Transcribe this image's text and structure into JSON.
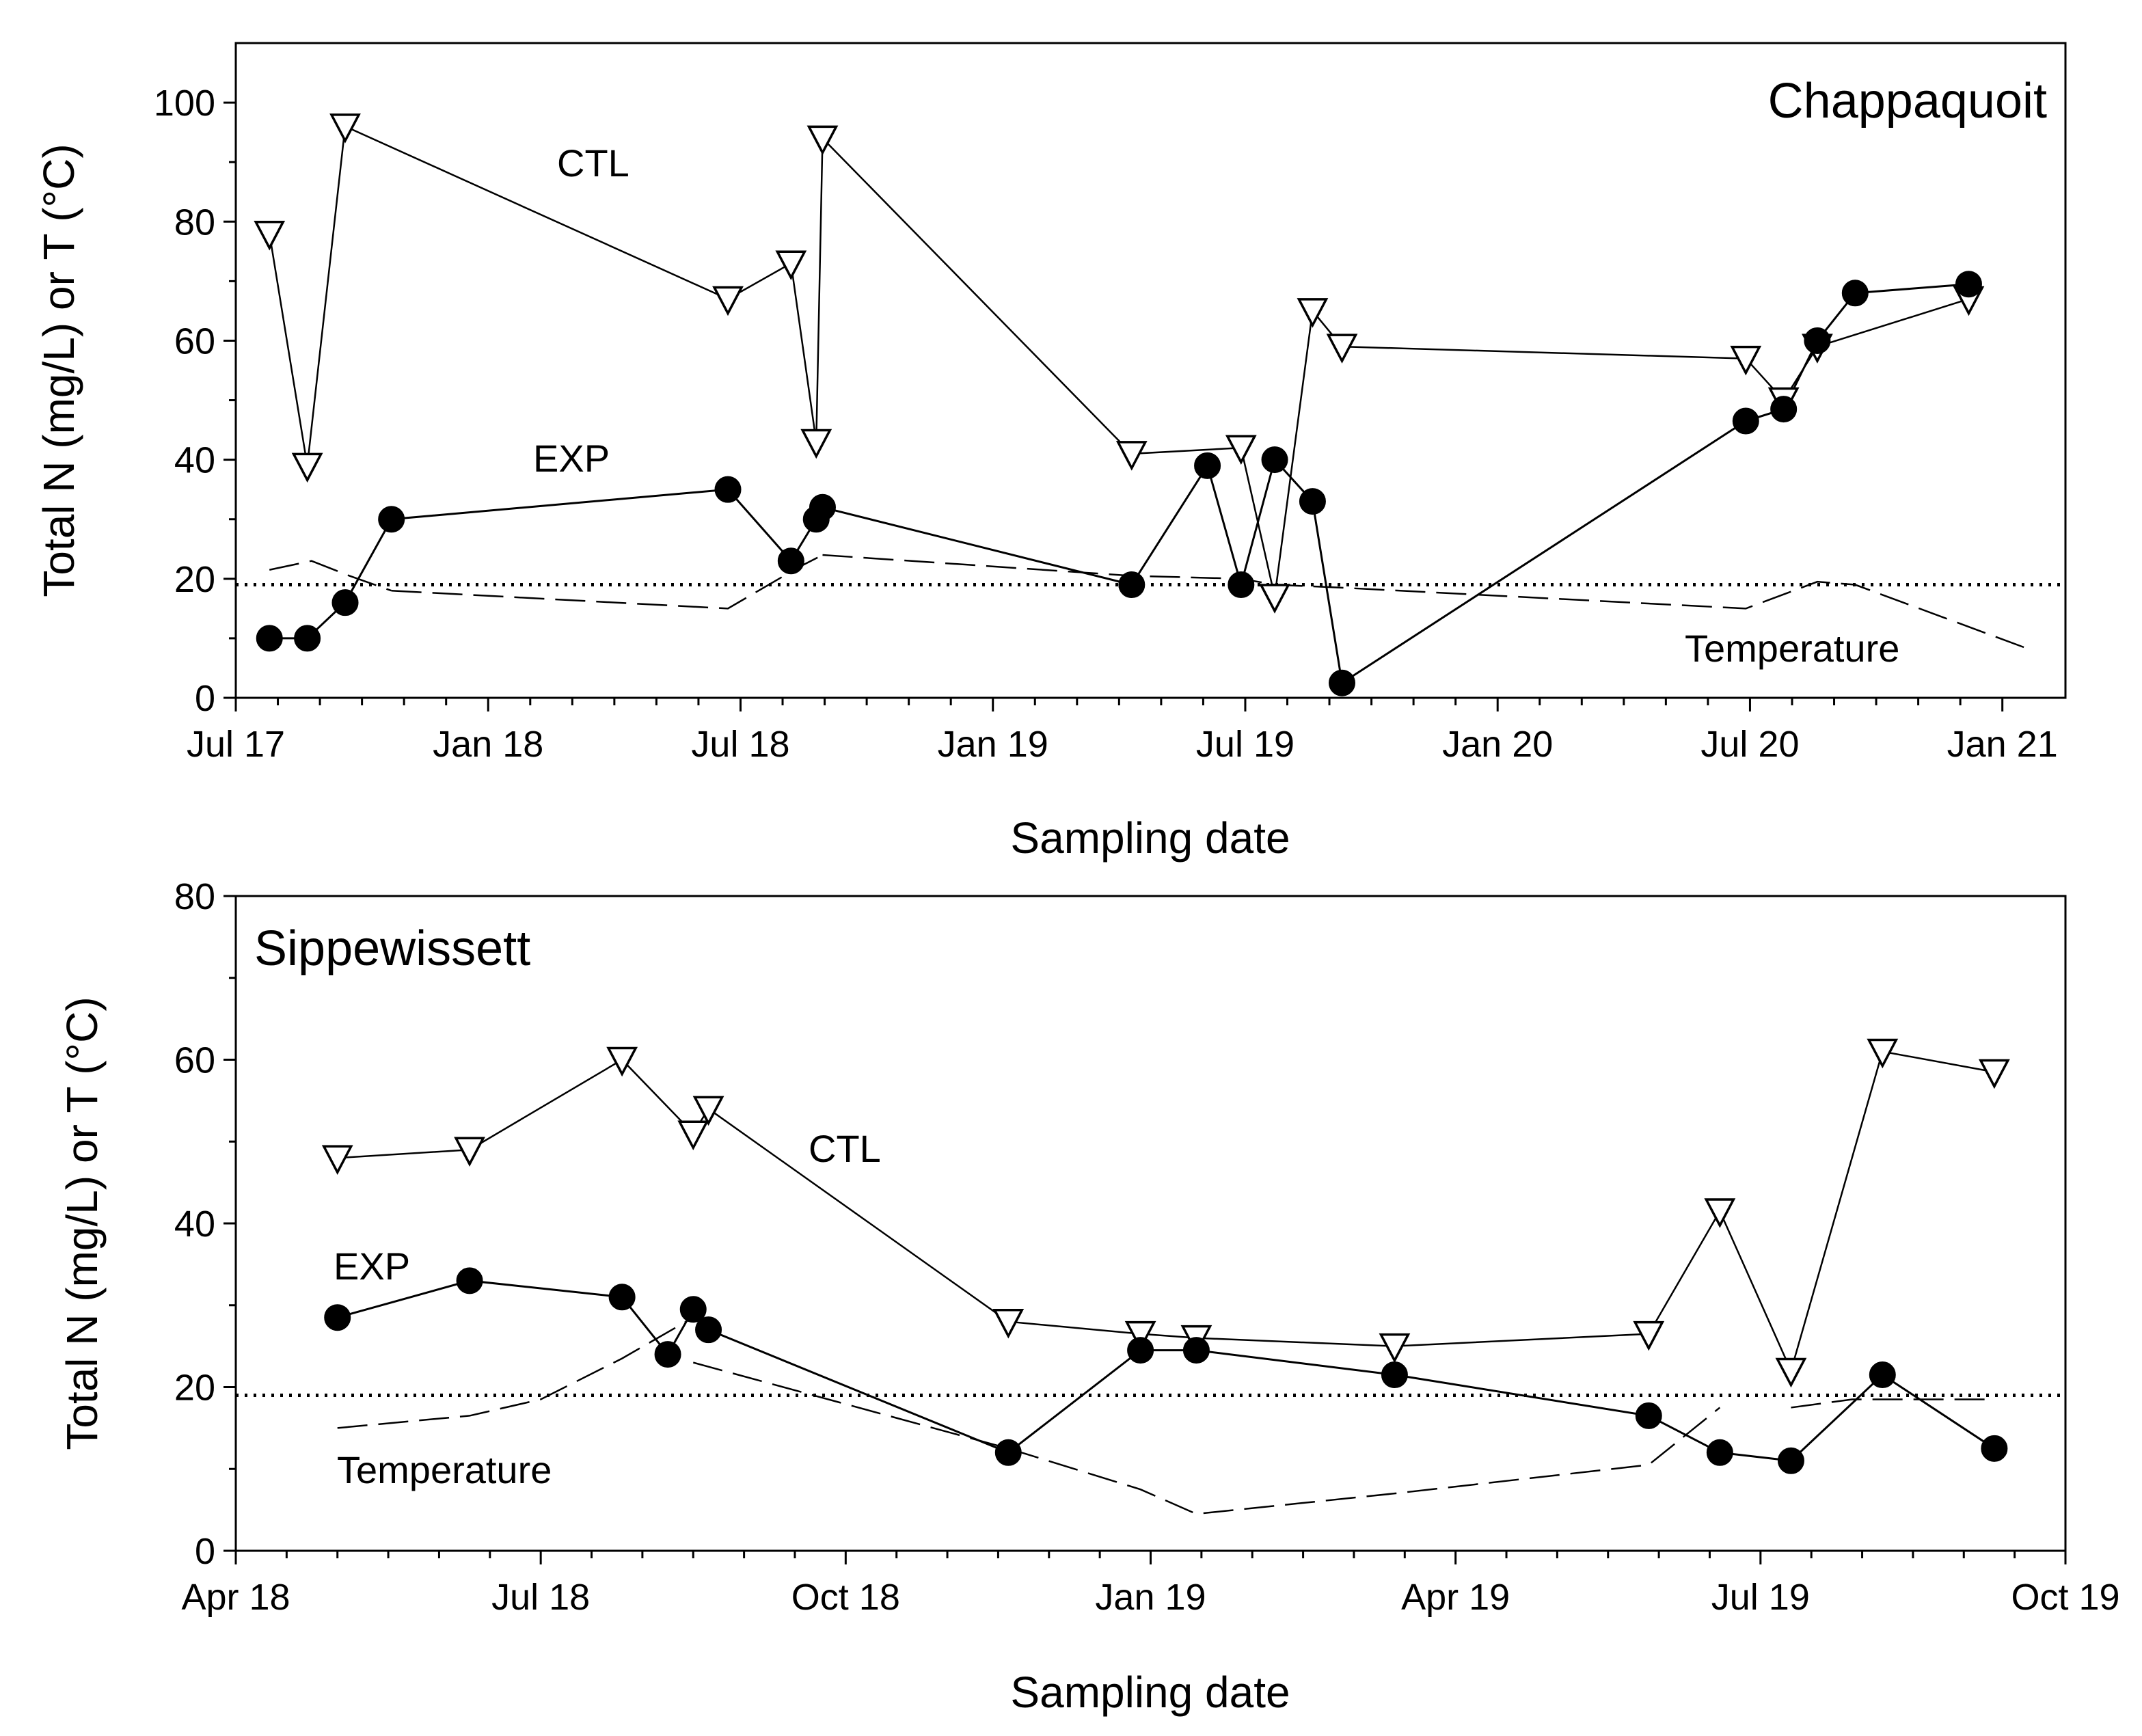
{
  "chart_data": [
    {
      "type": "line",
      "title": "Chappaquoit",
      "xlabel": "Sampling date",
      "ylabel": "Total N (mg/L) or T (°C)",
      "ylim": [
        0,
        110
      ],
      "xlim": [
        0,
        43.5
      ],
      "yticks": [
        0,
        20,
        40,
        60,
        80,
        100
      ],
      "xticks": [
        {
          "value": 0,
          "label": "Jul 17"
        },
        {
          "value": 6,
          "label": "Jan 18"
        },
        {
          "value": 12,
          "label": "Jul 18"
        },
        {
          "value": 18,
          "label": "Jan 19"
        },
        {
          "value": 24,
          "label": "Jul 19"
        },
        {
          "value": 30,
          "label": "Jan 20"
        },
        {
          "value": 36,
          "label": "Jul 20"
        },
        {
          "value": 42,
          "label": "Jan 21"
        }
      ],
      "reference_line": {
        "name": "reference",
        "y": 19,
        "style": "dotted"
      },
      "series": [
        {
          "name": "CTL",
          "marker": "triangle-down-open",
          "x": [
            0.8,
            1.7,
            2.6,
            11.7,
            13.2,
            13.8,
            13.95,
            21.3,
            23.9,
            24.7,
            25.6,
            26.3,
            35.9,
            36.8,
            37.6,
            41.2
          ],
          "y": [
            78,
            39,
            96,
            67,
            73,
            43,
            94,
            41,
            42,
            17,
            65,
            59,
            57,
            50,
            59,
            67
          ]
        },
        {
          "name": "EXP",
          "marker": "circle-filled",
          "x": [
            0.8,
            1.7,
            2.6,
            3.7,
            11.7,
            13.2,
            13.8,
            13.95,
            21.3,
            23.1,
            23.9,
            24.7,
            25.6,
            26.3,
            35.9,
            36.8,
            37.6,
            38.5,
            41.2
          ],
          "y": [
            10,
            10,
            16,
            30,
            35,
            23,
            30,
            32,
            19,
            39,
            19,
            40,
            33,
            2.5,
            46.5,
            48.5,
            60,
            68,
            69.5
          ]
        },
        {
          "name": "Temperature",
          "style": "dashed",
          "segments": [
            {
              "x": [
                0.8,
                1.8,
                2.7,
                3.7
              ],
              "y": [
                21.5,
                23,
                20.5,
                18
              ]
            },
            {
              "x": [
                3.7,
                11.7,
                13.4,
                13.95
              ],
              "y": [
                18,
                15,
                22,
                24
              ]
            },
            {
              "x": [
                13.95,
                21.3,
                23.9,
                24.7,
                26.3,
                35.9,
                37.6,
                38.5,
                42.7
              ],
              "y": [
                24,
                20.5,
                20,
                19,
                18.5,
                15,
                19.5,
                19,
                8
              ]
            }
          ]
        }
      ],
      "annotations": {
        "ctl": "CTL",
        "exp": "EXP",
        "temperature": "Temperature"
      }
    },
    {
      "type": "line",
      "title": "Sippewissett",
      "xlabel": "Sampling date",
      "ylabel": "Total N (mg/L) or T (°C)",
      "ylim": [
        0,
        80
      ],
      "xlim": [
        0,
        18
      ],
      "yticks": [
        0,
        20,
        40,
        60,
        80
      ],
      "xticks": [
        {
          "value": 0,
          "label": "Apr 18"
        },
        {
          "value": 3,
          "label": "Jul 18"
        },
        {
          "value": 6,
          "label": "Oct 18"
        },
        {
          "value": 9,
          "label": "Jan 19"
        },
        {
          "value": 12,
          "label": "Apr 19"
        },
        {
          "value": 15,
          "label": "Jul 19"
        },
        {
          "value": 18,
          "label": "Oct 19"
        }
      ],
      "reference_line": {
        "name": "reference",
        "y": 19,
        "style": "dotted"
      },
      "series": [
        {
          "name": "CTL",
          "marker": "triangle-down-open",
          "x": [
            1.0,
            2.3,
            3.8,
            4.5,
            4.65,
            7.6,
            8.9,
            9.45,
            11.4,
            13.9,
            14.6,
            15.3,
            16.2,
            17.3
          ],
          "y": [
            48,
            49,
            60,
            51,
            54,
            28,
            26.5,
            26,
            25,
            26.5,
            41.5,
            22,
            61,
            58.5
          ]
        },
        {
          "name": "EXP",
          "marker": "circle-filled",
          "x": [
            1.0,
            2.3,
            3.8,
            4.25,
            4.5,
            4.65,
            7.6,
            8.9,
            9.45,
            11.4,
            13.9,
            14.6,
            15.3,
            16.2,
            17.3
          ],
          "y": [
            28.5,
            33,
            31,
            24,
            29.5,
            27,
            12,
            24.5,
            24.5,
            21.5,
            16.5,
            12,
            11,
            21.5,
            12.5
          ]
        },
        {
          "name": "Temperature",
          "style": "dashed",
          "segments": [
            {
              "x": [
                1.0,
                2.3,
                3.0,
                3.8,
                4.5
              ],
              "y": [
                15,
                16.5,
                18.5,
                23.5,
                28.5
              ]
            },
            {
              "x": [
                4.5,
                7.6,
                8.9,
                9.45,
                11.4,
                13.9,
                14.6
              ],
              "y": [
                23,
                12.5,
                7.5,
                4.5,
                7,
                10.5,
                17.5
              ]
            },
            {
              "x": [
                15.3,
                15.9,
                16.5,
                17.3
              ],
              "y": [
                17.5,
                18.5,
                18.5,
                18.5
              ]
            }
          ]
        }
      ],
      "annotations": {
        "ctl": "CTL",
        "exp": "EXP",
        "temperature": "Temperature"
      }
    }
  ]
}
